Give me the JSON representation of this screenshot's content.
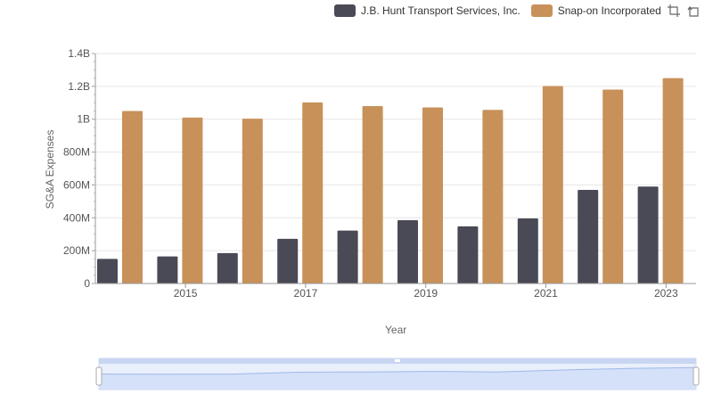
{
  "legend": {
    "series_a": "J.B. Hunt Transport Services, Inc.",
    "series_b": "Snap-on Incorporated"
  },
  "toolbar": {
    "zoom_icon": "zoom-select-icon",
    "reset_icon": "zoom-reset-icon"
  },
  "colors": {
    "series_a": "#4a4a56",
    "series_b": "#c8915a",
    "grid": "#e6e6e6",
    "slider_fill": "#d4e1f9",
    "slider_line": "#9fb8ea"
  },
  "chart_data": {
    "type": "bar",
    "title": "",
    "xlabel": "Year",
    "ylabel": "SG&A Expenses",
    "categories": [
      "2014",
      "2015",
      "2016",
      "2017",
      "2018",
      "2019",
      "2020",
      "2021",
      "2022",
      "2023"
    ],
    "x_tick_labels": [
      "2015",
      "2017",
      "2019",
      "2021",
      "2023"
    ],
    "y_tick_labels": [
      "0",
      "200M",
      "400M",
      "600M",
      "800M",
      "1B",
      "1.2B",
      "1.4B"
    ],
    "ylim": [
      0,
      1400000000
    ],
    "series": [
      {
        "name": "J.B. Hunt Transport Services, Inc.",
        "values": [
          150000000,
          165000000,
          185000000,
          272000000,
          322000000,
          385000000,
          348000000,
          396000000,
          570000000,
          590000000
        ]
      },
      {
        "name": "Snap-on Incorporated",
        "values": [
          1050000000,
          1010000000,
          1003000000,
          1102000000,
          1080000000,
          1072000000,
          1057000000,
          1202000000,
          1180000000,
          1250000000
        ]
      }
    ]
  }
}
